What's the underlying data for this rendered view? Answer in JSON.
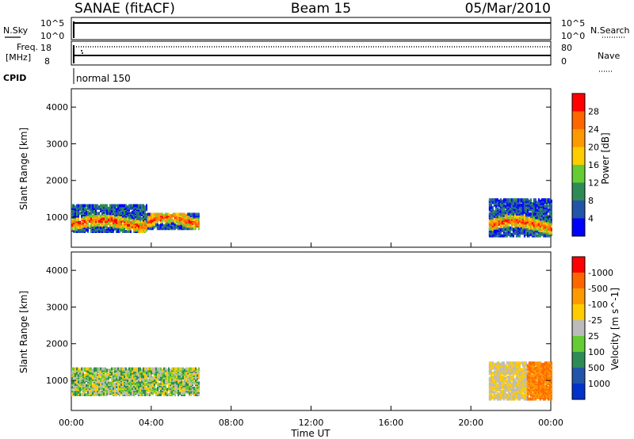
{
  "header": {
    "station": "SANAE (fitACF)",
    "beam": "Beam 15",
    "date": "05/Mar/2010"
  },
  "labels": {
    "nsky": "N.Sky",
    "nsearch": "N.Search",
    "freq_line1": "Freq.",
    "freq_line2": "[MHz]",
    "nave": "Nave",
    "cpid": "CPID",
    "cpid_value": "normal 150"
  },
  "noise_panel": {
    "left_ticks": [
      "10^5",
      "10^0"
    ],
    "right_ticks": [
      "10^5",
      "10^0"
    ]
  },
  "freq_panel": {
    "left_ticks": [
      "18",
      "8"
    ],
    "right_ticks": [
      "80",
      "0"
    ]
  },
  "chart_data": [
    {
      "type": "heatmap",
      "parameter": "power",
      "ylabel": "Slant Range [km]",
      "ylim": [
        180,
        4500
      ],
      "yticks": [
        1000,
        2000,
        3000,
        4000
      ],
      "xlim": [
        0,
        24
      ],
      "colorbar": {
        "label": "Power [dB]",
        "tick_labels": [
          "4",
          "8",
          "12",
          "16",
          "20",
          "24",
          "28"
        ],
        "colors": [
          "#0000ff",
          "#2255aa",
          "#2e8b57",
          "#66cc33",
          "#ffcc00",
          "#ff9900",
          "#ff6600",
          "#ff0000"
        ]
      },
      "scatter_regions": [
        {
          "start_h": 0.0,
          "end_h": 3.8,
          "min_km": 620,
          "max_km": 1350,
          "core_km": 820
        },
        {
          "start_h": 3.8,
          "end_h": 6.4,
          "min_km": 700,
          "max_km": 1100,
          "core_km": 900
        },
        {
          "start_h": 20.9,
          "end_h": 24.0,
          "min_km": 500,
          "max_km": 1500,
          "core_km": 800
        }
      ]
    },
    {
      "type": "heatmap",
      "parameter": "velocity",
      "ylabel": "Slant Range [km]",
      "ylim": [
        180,
        4500
      ],
      "yticks": [
        1000,
        2000,
        3000,
        4000
      ],
      "xlim": [
        0,
        24
      ],
      "xticks": [
        "00:00",
        "04:00",
        "08:00",
        "12:00",
        "16:00",
        "20:00",
        "00:00"
      ],
      "xlabel": "Time UT",
      "colorbar": {
        "label": "Velocity [m s^-1]",
        "tick_labels": [
          "1000",
          "500",
          "100",
          "25",
          "-25",
          "-100",
          "-500",
          "-1000"
        ],
        "colors": [
          "#0033cc",
          "#2255aa",
          "#2e8b57",
          "#66cc33",
          "#bbbbbb",
          "#ffcc00",
          "#ff9900",
          "#ff6600",
          "#ff0000"
        ]
      },
      "scatter_regions": [
        {
          "start_h": 0.0,
          "end_h": 6.4,
          "min_km": 620,
          "max_km": 1350
        },
        {
          "start_h": 20.9,
          "end_h": 24.0,
          "min_km": 500,
          "max_km": 1500
        }
      ]
    }
  ]
}
